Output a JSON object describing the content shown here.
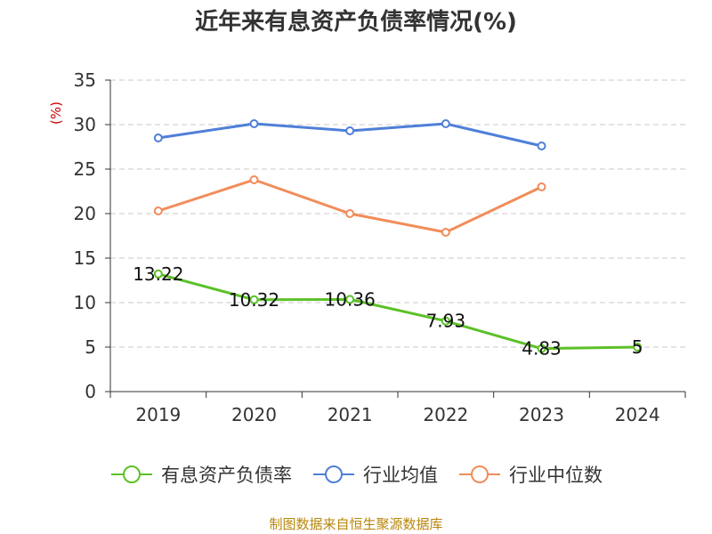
{
  "title": "近年来有息资产负债率情况(%)",
  "source": "制图数据来自恒生聚源数据库",
  "chart_data": {
    "type": "line",
    "title": "近年来有息资产负债率情况(%)",
    "ylabel": "(%)",
    "xlabel": "",
    "categories": [
      "2019",
      "2020",
      "2021",
      "2022",
      "2023",
      "2024"
    ],
    "ylim": [
      0,
      35
    ],
    "yticks": [
      0,
      5,
      10,
      15,
      20,
      25,
      30,
      35
    ],
    "grid": true,
    "legend_position": "bottom",
    "series": [
      {
        "name": "有息资产负债率",
        "color": "#5cc128",
        "values": [
          13.22,
          10.32,
          10.36,
          7.93,
          4.83,
          5
        ],
        "labels": [
          "13.22",
          "10.32",
          "10.36",
          "7.93",
          "4.83",
          "5"
        ]
      },
      {
        "name": "行业均值",
        "color": "#4f7fd8",
        "values": [
          28.5,
          30.1,
          29.3,
          30.1,
          27.6,
          null
        ]
      },
      {
        "name": "行业中位数",
        "color": "#f28c5a",
        "values": [
          20.3,
          23.8,
          20.0,
          17.9,
          23.0,
          null
        ]
      }
    ]
  }
}
